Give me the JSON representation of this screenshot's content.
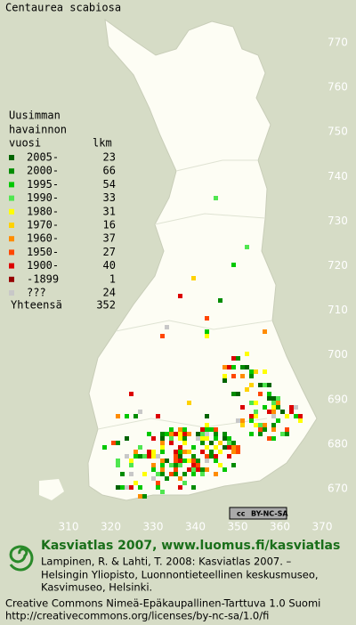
{
  "title": "Centaurea scabiosa",
  "legend": {
    "header": [
      "Uusimman",
      "havainnon",
      "vuosi",
      "lkm"
    ],
    "rows": [
      {
        "label": "2005-",
        "count": 23,
        "color": "#006400"
      },
      {
        "label": "2000-",
        "count": 66,
        "color": "#008c00"
      },
      {
        "label": "1995-",
        "count": 54,
        "color": "#00c800"
      },
      {
        "label": "1990-",
        "count": 33,
        "color": "#50e650"
      },
      {
        "label": "1980-",
        "count": 31,
        "color": "#ffff00"
      },
      {
        "label": "1970-",
        "count": 16,
        "color": "#ffd200"
      },
      {
        "label": "1960-",
        "count": 37,
        "color": "#ff8c00"
      },
      {
        "label": "1950-",
        "count": 27,
        "color": "#ff4600"
      },
      {
        "label": "1900-",
        "count": 40,
        "color": "#dc0000"
      },
      {
        "label": "-1899",
        "count": 1,
        "color": "#960000"
      },
      {
        "label": "???",
        "count": 24,
        "color": "#c8c8c8"
      }
    ],
    "total_label": "Yhteensä",
    "total": 352
  },
  "grid": {
    "y_labels": [
      770,
      760,
      750,
      740,
      730,
      720,
      710,
      700,
      690,
      680,
      670
    ],
    "x_labels": [
      310,
      320,
      330,
      340,
      350,
      360,
      370
    ]
  },
  "license_badge": [
    "cc",
    "BY-NC-SA"
  ],
  "footer": {
    "heading": "Kasviatlas 2007, www.luomus.fi/kasviatlas",
    "citation": [
      "Lampinen, R. & Lahti, T. 2008: Kasviatlas 2007. –",
      "Helsingin Yliopisto, Luonnontieteellinen keskusmuseo,",
      "Kasvimuseo, Helsinki."
    ],
    "license": [
      "Creative Commons Nimeä-Epäkaupallinen-Tarttuva 1.0 Suomi",
      "http://creativecommons.org/licenses/by-nc-sa/1.0/fi"
    ]
  }
}
